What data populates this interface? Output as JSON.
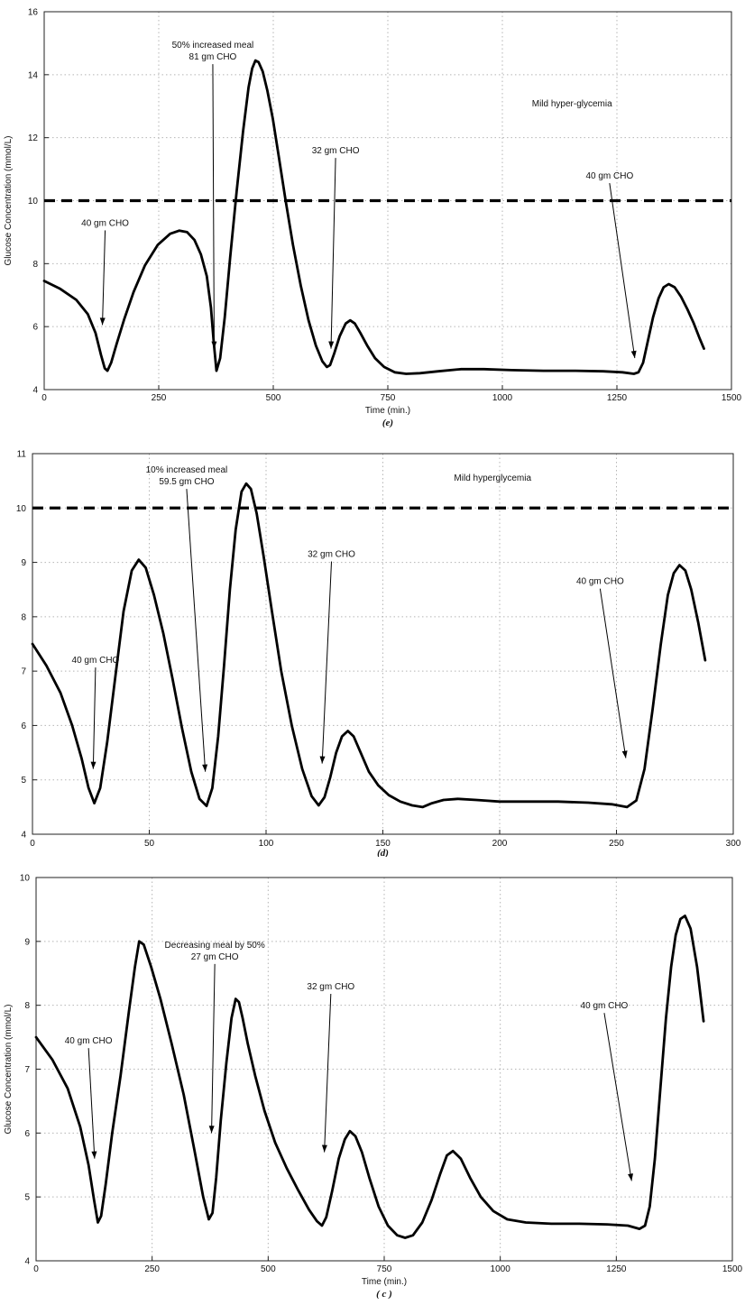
{
  "page": {
    "background": "#ffffff",
    "accent": "#000000"
  },
  "chart_data": [
    {
      "id": "top",
      "type": "line",
      "title": "",
      "xlabel": "Time (min.)",
      "ylabel": "Glucose Concentration (mmol/L)",
      "caption": "(e)",
      "xlim": [
        0,
        1500
      ],
      "ylim": [
        4,
        16
      ],
      "xticks": [
        0,
        250,
        500,
        750,
        1000,
        1250,
        1500
      ],
      "yticks": [
        4,
        6,
        8,
        10,
        12,
        14,
        16
      ],
      "grid": true,
      "threshold": {
        "y": 10
      },
      "line_color": "#000000",
      "series": [
        {
          "name": "glucose",
          "x": [
            0,
            35,
            70,
            95,
            112,
            124,
            132,
            138,
            146,
            158,
            175,
            195,
            220,
            248,
            275,
            295,
            312,
            328,
            342,
            355,
            364,
            370,
            376,
            384,
            394,
            406,
            420,
            434,
            446,
            454,
            461,
            468,
            477,
            487,
            499,
            512,
            527,
            543,
            560,
            577,
            593,
            607,
            617,
            624,
            633,
            645,
            658,
            668,
            678,
            690,
            705,
            722,
            742,
            765,
            790,
            820,
            860,
            910,
            960,
            1020,
            1090,
            1160,
            1220,
            1262,
            1287,
            1297,
            1307,
            1317,
            1329,
            1341,
            1352,
            1363,
            1376,
            1390,
            1404,
            1418,
            1430,
            1440
          ],
          "y": [
            7.45,
            7.2,
            6.85,
            6.4,
            5.8,
            5.1,
            4.68,
            4.6,
            4.85,
            5.45,
            6.25,
            7.1,
            7.95,
            8.6,
            8.95,
            9.05,
            9.0,
            8.75,
            8.3,
            7.6,
            6.6,
            5.5,
            4.6,
            5.0,
            6.3,
            8.2,
            10.3,
            12.2,
            13.6,
            14.2,
            14.45,
            14.4,
            14.1,
            13.5,
            12.6,
            11.4,
            10.0,
            8.6,
            7.3,
            6.2,
            5.4,
            4.9,
            4.72,
            4.78,
            5.15,
            5.7,
            6.1,
            6.2,
            6.1,
            5.8,
            5.4,
            5.0,
            4.72,
            4.55,
            4.5,
            4.52,
            4.58,
            4.65,
            4.65,
            4.62,
            4.6,
            4.6,
            4.58,
            4.55,
            4.5,
            4.55,
            4.85,
            5.5,
            6.3,
            6.9,
            7.25,
            7.35,
            7.25,
            6.95,
            6.55,
            6.1,
            5.65,
            5.3
          ]
        }
      ],
      "annotations": [
        {
          "lines": [
            "40 gm CHO"
          ],
          "x": 133,
          "y": 9.2,
          "tip": {
            "x": 127,
            "y": 6.05
          }
        },
        {
          "lines": [
            "50% increased meal",
            "81 gm CHO"
          ],
          "x": 368,
          "y": 14.85,
          "tip": {
            "x": 371,
            "y": 5.3
          }
        },
        {
          "lines": [
            "32 gm CHO"
          ],
          "x": 636,
          "y": 11.5,
          "tip": {
            "x": 626,
            "y": 5.3
          }
        },
        {
          "lines": [
            "Mild hyper-glycemia"
          ],
          "x": 1152,
          "y": 13.0,
          "tip": null
        },
        {
          "lines": [
            "40 gm CHO"
          ],
          "x": 1234,
          "y": 10.7,
          "tip": {
            "x": 1289,
            "y": 5.0
          }
        }
      ]
    },
    {
      "id": "middle",
      "type": "line",
      "title": "",
      "xlabel": "",
      "ylabel": "",
      "caption": "(d)",
      "xlim": [
        0,
        300
      ],
      "ylim": [
        4,
        11
      ],
      "xticks": [
        0,
        50,
        100,
        150,
        200,
        250,
        300
      ],
      "yticks": [
        4,
        5,
        6,
        7,
        8,
        9,
        10,
        11
      ],
      "grid": true,
      "threshold": {
        "y": 10
      },
      "line_color": "#000000",
      "series": [
        {
          "name": "glucose",
          "x": [
            0,
            6,
            12,
            17,
            21,
            24,
            26.5,
            29,
            32,
            35.5,
            39,
            42.5,
            45.5,
            48.5,
            52,
            56,
            60,
            64,
            68,
            71.5,
            74.5,
            77,
            79.5,
            82,
            84.5,
            87,
            89.5,
            91.5,
            93.5,
            96,
            99,
            102.5,
            106.5,
            111,
            115.5,
            119.5,
            122.5,
            125,
            127.5,
            130,
            132.5,
            135,
            137.5,
            140.5,
            144,
            148,
            152.5,
            157.5,
            162.5,
            167,
            171,
            176,
            182,
            190,
            200,
            212,
            225,
            238,
            248,
            254.5,
            258.5,
            262,
            265.5,
            269,
            272,
            274.5,
            277,
            279.5,
            282,
            285,
            288
          ],
          "y": [
            7.5,
            7.1,
            6.6,
            6.0,
            5.4,
            4.85,
            4.57,
            4.85,
            5.7,
            6.9,
            8.1,
            8.85,
            9.05,
            8.9,
            8.4,
            7.7,
            6.85,
            5.95,
            5.15,
            4.65,
            4.52,
            4.85,
            5.8,
            7.1,
            8.5,
            9.6,
            10.3,
            10.45,
            10.35,
            9.9,
            9.1,
            8.1,
            7.0,
            6.0,
            5.2,
            4.7,
            4.53,
            4.68,
            5.05,
            5.5,
            5.8,
            5.9,
            5.8,
            5.5,
            5.15,
            4.9,
            4.72,
            4.6,
            4.53,
            4.5,
            4.57,
            4.63,
            4.65,
            4.63,
            4.6,
            4.6,
            4.6,
            4.58,
            4.55,
            4.5,
            4.62,
            5.2,
            6.3,
            7.5,
            8.4,
            8.8,
            8.95,
            8.85,
            8.5,
            7.9,
            7.2
          ]
        }
      ],
      "annotations": [
        {
          "lines": [
            "40 gm CHO"
          ],
          "x": 27,
          "y": 7.15,
          "tip": {
            "x": 26,
            "y": 5.2
          }
        },
        {
          "lines": [
            "10% increased meal",
            "59.5 gm CHO"
          ],
          "x": 66,
          "y": 10.65,
          "tip": {
            "x": 74,
            "y": 5.15
          }
        },
        {
          "lines": [
            "32 gm CHO"
          ],
          "x": 128,
          "y": 9.1,
          "tip": {
            "x": 124,
            "y": 5.3
          }
        },
        {
          "lines": [
            "Mild hyperglycemia"
          ],
          "x": 197,
          "y": 10.5,
          "tip": null
        },
        {
          "lines": [
            "40 gm CHO"
          ],
          "x": 243,
          "y": 8.6,
          "tip": {
            "x": 254,
            "y": 5.4
          }
        }
      ]
    },
    {
      "id": "bottom",
      "type": "line",
      "title": "",
      "xlabel": "Time (min.)",
      "ylabel": "Glucose Concentration (mmol/L)",
      "caption": "( c )",
      "xlim": [
        0,
        1500
      ],
      "ylim": [
        4,
        10
      ],
      "xticks": [
        0,
        250,
        500,
        750,
        1000,
        1250,
        1500
      ],
      "yticks": [
        4,
        5,
        6,
        7,
        8,
        9,
        10
      ],
      "grid": true,
      "threshold": null,
      "line_color": "#000000",
      "series": [
        {
          "name": "glucose",
          "x": [
            0,
            35,
            68,
            95,
            113,
            125,
            133,
            140,
            150,
            164,
            182,
            200,
            213,
            222,
            232,
            248,
            268,
            292,
            318,
            342,
            360,
            372,
            380,
            388,
            398,
            410,
            421,
            430,
            437,
            445,
            456,
            472,
            492,
            515,
            540,
            565,
            588,
            605,
            616,
            625,
            638,
            652,
            665,
            676,
            688,
            702,
            718,
            738,
            758,
            778,
            795,
            812,
            832,
            852,
            870,
            885,
            898,
            915,
            935,
            958,
            985,
            1015,
            1055,
            1110,
            1170,
            1230,
            1275,
            1300,
            1312,
            1322,
            1333,
            1345,
            1357,
            1368,
            1378,
            1388,
            1398,
            1410,
            1424,
            1438
          ],
          "y": [
            7.5,
            7.15,
            6.7,
            6.1,
            5.5,
            4.95,
            4.6,
            4.7,
            5.2,
            6.0,
            6.9,
            7.9,
            8.6,
            9.0,
            8.95,
            8.6,
            8.1,
            7.4,
            6.6,
            5.7,
            5.0,
            4.65,
            4.75,
            5.3,
            6.2,
            7.1,
            7.8,
            8.1,
            8.05,
            7.8,
            7.4,
            6.9,
            6.35,
            5.85,
            5.45,
            5.1,
            4.8,
            4.62,
            4.55,
            4.68,
            5.1,
            5.6,
            5.9,
            6.03,
            5.95,
            5.7,
            5.3,
            4.85,
            4.55,
            4.4,
            4.36,
            4.4,
            4.6,
            4.95,
            5.35,
            5.65,
            5.72,
            5.6,
            5.3,
            5.0,
            4.78,
            4.65,
            4.6,
            4.58,
            4.58,
            4.57,
            4.55,
            4.5,
            4.55,
            4.85,
            5.6,
            6.7,
            7.8,
            8.6,
            9.1,
            9.35,
            9.4,
            9.2,
            8.6,
            7.75
          ]
        }
      ],
      "annotations": [
        {
          "lines": [
            "40 gm CHO"
          ],
          "x": 113,
          "y": 7.4,
          "tip": {
            "x": 126,
            "y": 5.6
          }
        },
        {
          "lines": [
            "Decreasing meal by 50%",
            "27 gm CHO"
          ],
          "x": 385,
          "y": 8.9,
          "tip": {
            "x": 378,
            "y": 6.0
          }
        },
        {
          "lines": [
            "32 gm CHO"
          ],
          "x": 635,
          "y": 8.25,
          "tip": {
            "x": 621,
            "y": 5.7
          }
        },
        {
          "lines": [
            "40 gm CHO"
          ],
          "x": 1224,
          "y": 7.95,
          "tip": {
            "x": 1283,
            "y": 5.25
          }
        }
      ]
    }
  ]
}
